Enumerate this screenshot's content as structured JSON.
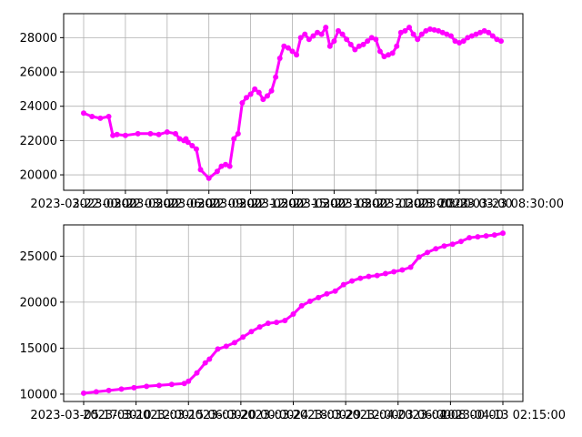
{
  "chart_data": [
    {
      "type": "line",
      "marker": "dot",
      "color": "#ff00ff",
      "grid": true,
      "xlabel": "",
      "ylabel": "",
      "title": "",
      "x_tick_labels": [
        "2023-03-22 00:00",
        "2023-03-22 03:00",
        "2023-03-22 06:00",
        "2023-03-22 09:00",
        "2023-03-22 12:00",
        "2023-03-22 15:00",
        "2023-03-22 18:00",
        "2023-03-22 21:00",
        "2023-03-23 00:00",
        "2023-03-23 03:00",
        "2023-03-23 08:30:00"
      ],
      "y_ticks": [
        20000,
        22000,
        24000,
        26000,
        28000
      ],
      "ylim": [
        19100,
        29400
      ],
      "series": [
        {
          "x": [
            0,
            0.02,
            0.04,
            0.06,
            0.07,
            0.08,
            0.1,
            0.13,
            0.16,
            0.18,
            0.2,
            0.22,
            0.23,
            0.24,
            0.245,
            0.25,
            0.26,
            0.27,
            0.28,
            0.3,
            0.32,
            0.33,
            0.34,
            0.35,
            0.36,
            0.37,
            0.38,
            0.39,
            0.4,
            0.41,
            0.42,
            0.43,
            0.44,
            0.45,
            0.46,
            0.47,
            0.48,
            0.49,
            0.5,
            0.51,
            0.52,
            0.53,
            0.54,
            0.55,
            0.56,
            0.57,
            0.58,
            0.59,
            0.6,
            0.61,
            0.62,
            0.63,
            0.64,
            0.65,
            0.66,
            0.67,
            0.68,
            0.69,
            0.7,
            0.71,
            0.72,
            0.73,
            0.74,
            0.75,
            0.76,
            0.77,
            0.78,
            0.79,
            0.8,
            0.81,
            0.82,
            0.83,
            0.84,
            0.85,
            0.86,
            0.87,
            0.88,
            0.89,
            0.9,
            0.91,
            0.92,
            0.93,
            0.94,
            0.95,
            0.96,
            0.97,
            0.98,
            0.99,
            1.0
          ],
          "y": [
            23600,
            23400,
            23300,
            23400,
            22300,
            22350,
            22300,
            22400,
            22400,
            22350,
            22500,
            22400,
            22100,
            22000,
            22100,
            21900,
            21700,
            21500,
            20300,
            19800,
            20200,
            20500,
            20600,
            20500,
            22100,
            22400,
            24200,
            24500,
            24700,
            25000,
            24800,
            24400,
            24600,
            24900,
            25700,
            26800,
            27500,
            27400,
            27200,
            27000,
            28000,
            28200,
            27900,
            28100,
            28300,
            28200,
            28600,
            27500,
            27800,
            28400,
            28200,
            27900,
            27600,
            27300,
            27500,
            27600,
            27800,
            28000,
            27900,
            27200,
            26900,
            27000,
            27100,
            27500,
            28300,
            28400,
            28600,
            28200,
            27900,
            28200,
            28400,
            28500,
            28450,
            28400,
            28300,
            28200,
            28100,
            27800,
            27700,
            27800,
            28000,
            28100,
            28200,
            28300,
            28400,
            28300,
            28100,
            27900,
            27800
          ]
        }
      ]
    },
    {
      "type": "line",
      "marker": "dot",
      "color": "#ff00ff",
      "grid": true,
      "xlabel": "",
      "ylabel": "",
      "title": "",
      "x_tick_labels": [
        "2023-03-05 17:30",
        "2023-03-10 12:00",
        "2023-03-15 06:00",
        "2023-03-20 00:00",
        "2023-03-24 18:00",
        "2023-03-29 12:00",
        "2023-04-03 06:00",
        "2023-04-08 00:00",
        "2023-04-13 02:15:00"
      ],
      "y_ticks": [
        10000,
        15000,
        20000,
        25000
      ],
      "ylim": [
        9200,
        28400
      ],
      "series": [
        {
          "x": [
            0,
            0.03,
            0.06,
            0.09,
            0.12,
            0.15,
            0.18,
            0.21,
            0.24,
            0.25,
            0.27,
            0.29,
            0.3,
            0.32,
            0.34,
            0.36,
            0.38,
            0.4,
            0.42,
            0.44,
            0.46,
            0.48,
            0.5,
            0.52,
            0.54,
            0.56,
            0.58,
            0.6,
            0.62,
            0.64,
            0.66,
            0.68,
            0.7,
            0.72,
            0.74,
            0.76,
            0.78,
            0.8,
            0.82,
            0.84,
            0.86,
            0.88,
            0.9,
            0.92,
            0.94,
            0.96,
            0.98,
            1.0
          ],
          "y": [
            10100,
            10250,
            10400,
            10550,
            10700,
            10850,
            10950,
            11050,
            11150,
            11400,
            12300,
            13400,
            13800,
            14900,
            15200,
            15600,
            16200,
            16800,
            17300,
            17700,
            17800,
            18000,
            18700,
            19600,
            20100,
            20500,
            20900,
            21200,
            21900,
            22300,
            22600,
            22800,
            22900,
            23100,
            23300,
            23500,
            23800,
            24900,
            25400,
            25800,
            26100,
            26300,
            26600,
            27000,
            27100,
            27200,
            27300,
            27500
          ]
        }
      ]
    }
  ]
}
